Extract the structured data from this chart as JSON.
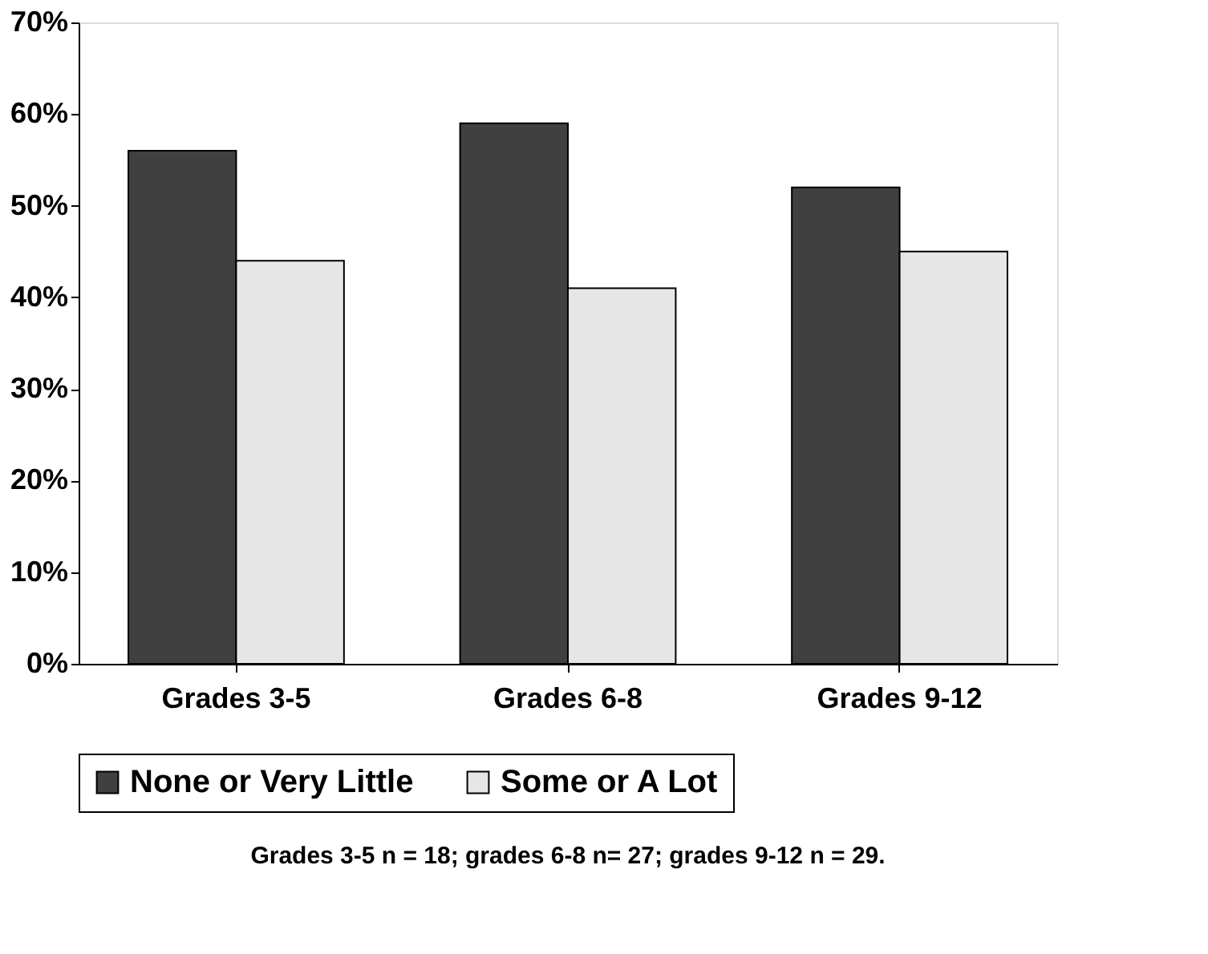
{
  "chart_data": {
    "type": "bar",
    "categories": [
      "Grades 3-5",
      "Grades 6-8",
      "Grades 9-12"
    ],
    "series": [
      {
        "name": "None or Very Little",
        "color": "#404040",
        "values": [
          56,
          59,
          52
        ]
      },
      {
        "name": "Some or A Lot",
        "color": "#e6e6e6",
        "values": [
          44,
          41,
          45
        ]
      }
    ],
    "ylim": [
      0,
      70
    ],
    "yticks": [
      {
        "value": 0,
        "label": "0%"
      },
      {
        "value": 10,
        "label": "10%"
      },
      {
        "value": 20,
        "label": "20%"
      },
      {
        "value": 30,
        "label": "30%"
      },
      {
        "value": 40,
        "label": "40%"
      },
      {
        "value": 50,
        "label": "50%"
      },
      {
        "value": 60,
        "label": "60%"
      },
      {
        "value": 70,
        "label": "70%"
      }
    ],
    "grid": false,
    "legend": "bottom",
    "annotations": [
      "Grades 3-5 n = 18; grades 6-8 n= 27; grades 9-12 n = 29."
    ]
  }
}
